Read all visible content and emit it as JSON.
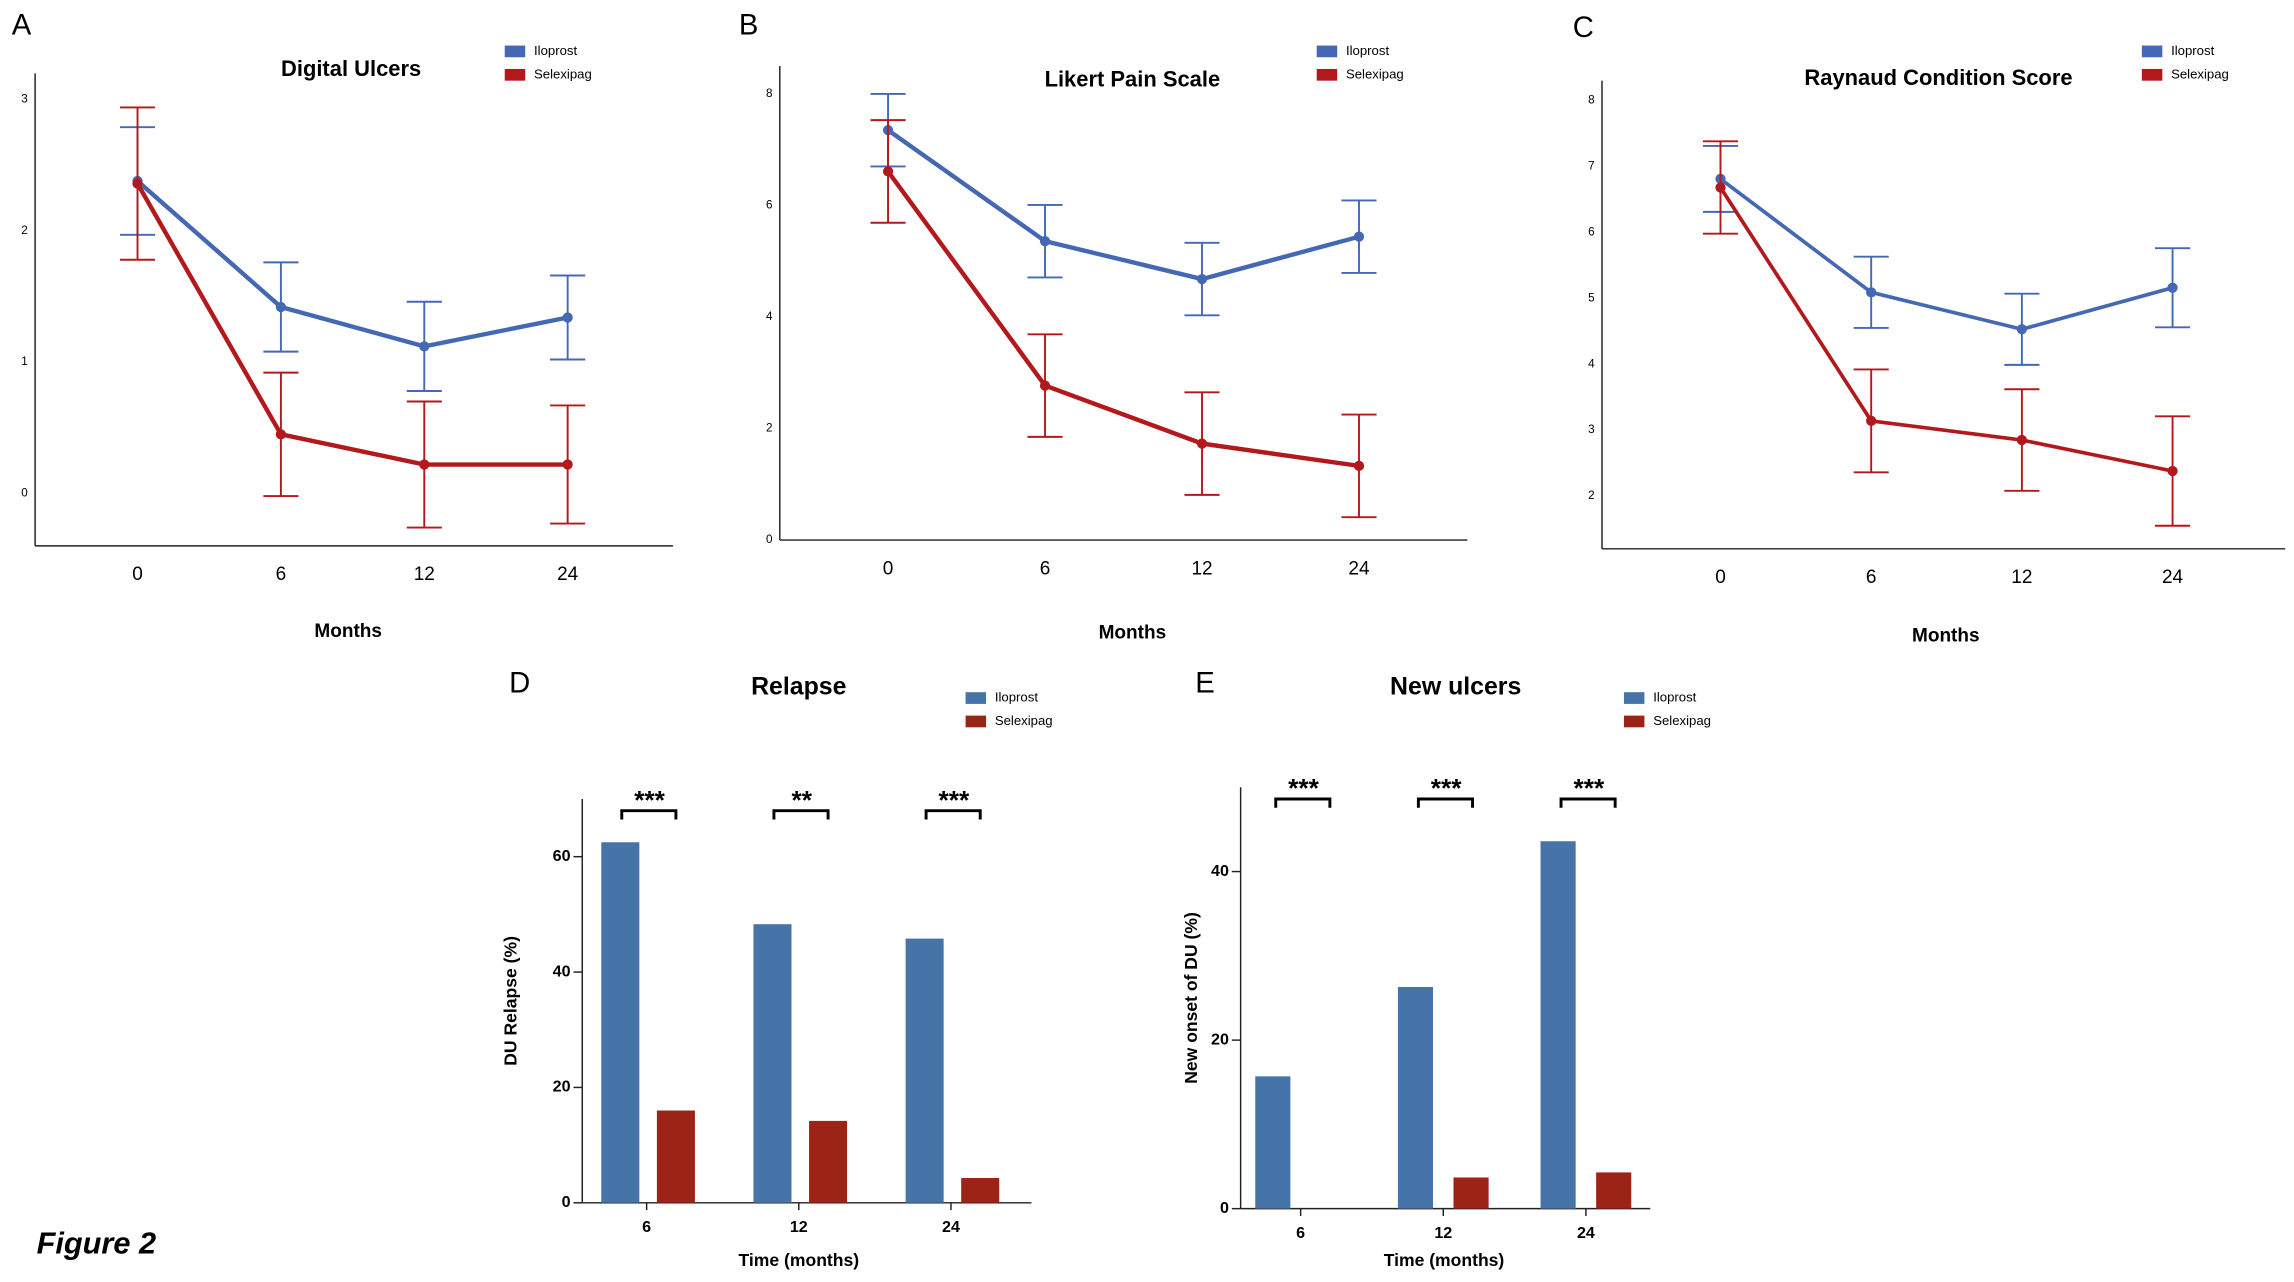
{
  "figure_label": "Figure 2",
  "chart_data": [
    {
      "type": "line",
      "panel": "A",
      "title": "Digital Ulcers",
      "xlabel": "Months",
      "categories": [
        "0",
        "6",
        "12",
        "24"
      ],
      "ylim": [
        -0.4,
        3.2
      ],
      "yticks": [
        0,
        1,
        2,
        3
      ],
      "series": [
        {
          "name": "Iloprost",
          "color": "#4468b3",
          "values": [
            2.38,
            1.42,
            1.12,
            1.34
          ],
          "errors": [
            0.41,
            0.34,
            0.34,
            0.32
          ]
        },
        {
          "name": "Selexipag",
          "color": "#b3191c",
          "values": [
            2.36,
            0.45,
            0.22,
            0.22
          ],
          "errors": [
            0.58,
            0.47,
            0.48,
            0.45
          ]
        }
      ]
    },
    {
      "type": "line",
      "panel": "B",
      "title": "Likert Pain Scale",
      "xlabel": "Months",
      "categories": [
        "0",
        "6",
        "12",
        "24"
      ],
      "ylim": [
        0,
        8.5
      ],
      "yticks": [
        0,
        2,
        4,
        6,
        8
      ],
      "series": [
        {
          "name": "Iloprost",
          "color": "#4468b3",
          "values": [
            7.35,
            5.36,
            4.68,
            5.44
          ],
          "errors": [
            0.65,
            0.65,
            0.65,
            0.65
          ]
        },
        {
          "name": "Selexipag",
          "color": "#b3191c",
          "values": [
            6.61,
            2.77,
            1.73,
            1.33
          ],
          "errors": [
            0.92,
            0.92,
            0.92,
            0.92
          ]
        }
      ]
    },
    {
      "type": "line",
      "panel": "C",
      "title": "Raynaud Condition Score",
      "xlabel": "Months",
      "categories": [
        "0",
        "6",
        "12",
        "24"
      ],
      "ylim": [
        1.2,
        8.3
      ],
      "yticks": [
        2,
        3,
        4,
        5,
        6,
        7,
        8
      ],
      "series": [
        {
          "name": "Iloprost",
          "color": "#4468b3",
          "values": [
            6.81,
            5.09,
            4.53,
            5.16
          ],
          "errors": [
            0.5,
            0.54,
            0.54,
            0.6
          ]
        },
        {
          "name": "Selexipag",
          "color": "#b3191c",
          "values": [
            6.68,
            3.14,
            2.85,
            2.38
          ],
          "errors": [
            0.7,
            0.78,
            0.77,
            0.83
          ]
        }
      ]
    },
    {
      "type": "bar",
      "panel": "D",
      "title": "Relapse",
      "xlabel": "Time (months)",
      "ylabel": "DU Relapse (%)",
      "categories": [
        "6",
        "12",
        "24"
      ],
      "annotations": [
        "***",
        "**",
        "***"
      ],
      "ylim": [
        0,
        70
      ],
      "yticks": [
        0,
        20,
        40,
        60
      ],
      "series": [
        {
          "name": "Iloprost",
          "color": "#4674a8",
          "values": [
            62.5,
            48.3,
            45.8
          ]
        },
        {
          "name": "Selexipag",
          "color": "#9c2416",
          "values": [
            16.0,
            14.2,
            4.3
          ]
        }
      ]
    },
    {
      "type": "bar",
      "panel": "E",
      "title": "New ulcers",
      "xlabel": "Time (months)",
      "ylabel": "New onset of DU (%)",
      "categories": [
        "6",
        "12",
        "24"
      ],
      "annotations": [
        "***",
        "***",
        "***"
      ],
      "ylim": [
        0,
        50
      ],
      "yticks": [
        0,
        20,
        40
      ],
      "series": [
        {
          "name": "Iloprost",
          "color": "#4674a8",
          "values": [
            15.7,
            26.3,
            43.6
          ]
        },
        {
          "name": "Selexipag",
          "color": "#9c2416",
          "values": [
            0,
            3.7,
            4.3
          ]
        }
      ]
    }
  ]
}
